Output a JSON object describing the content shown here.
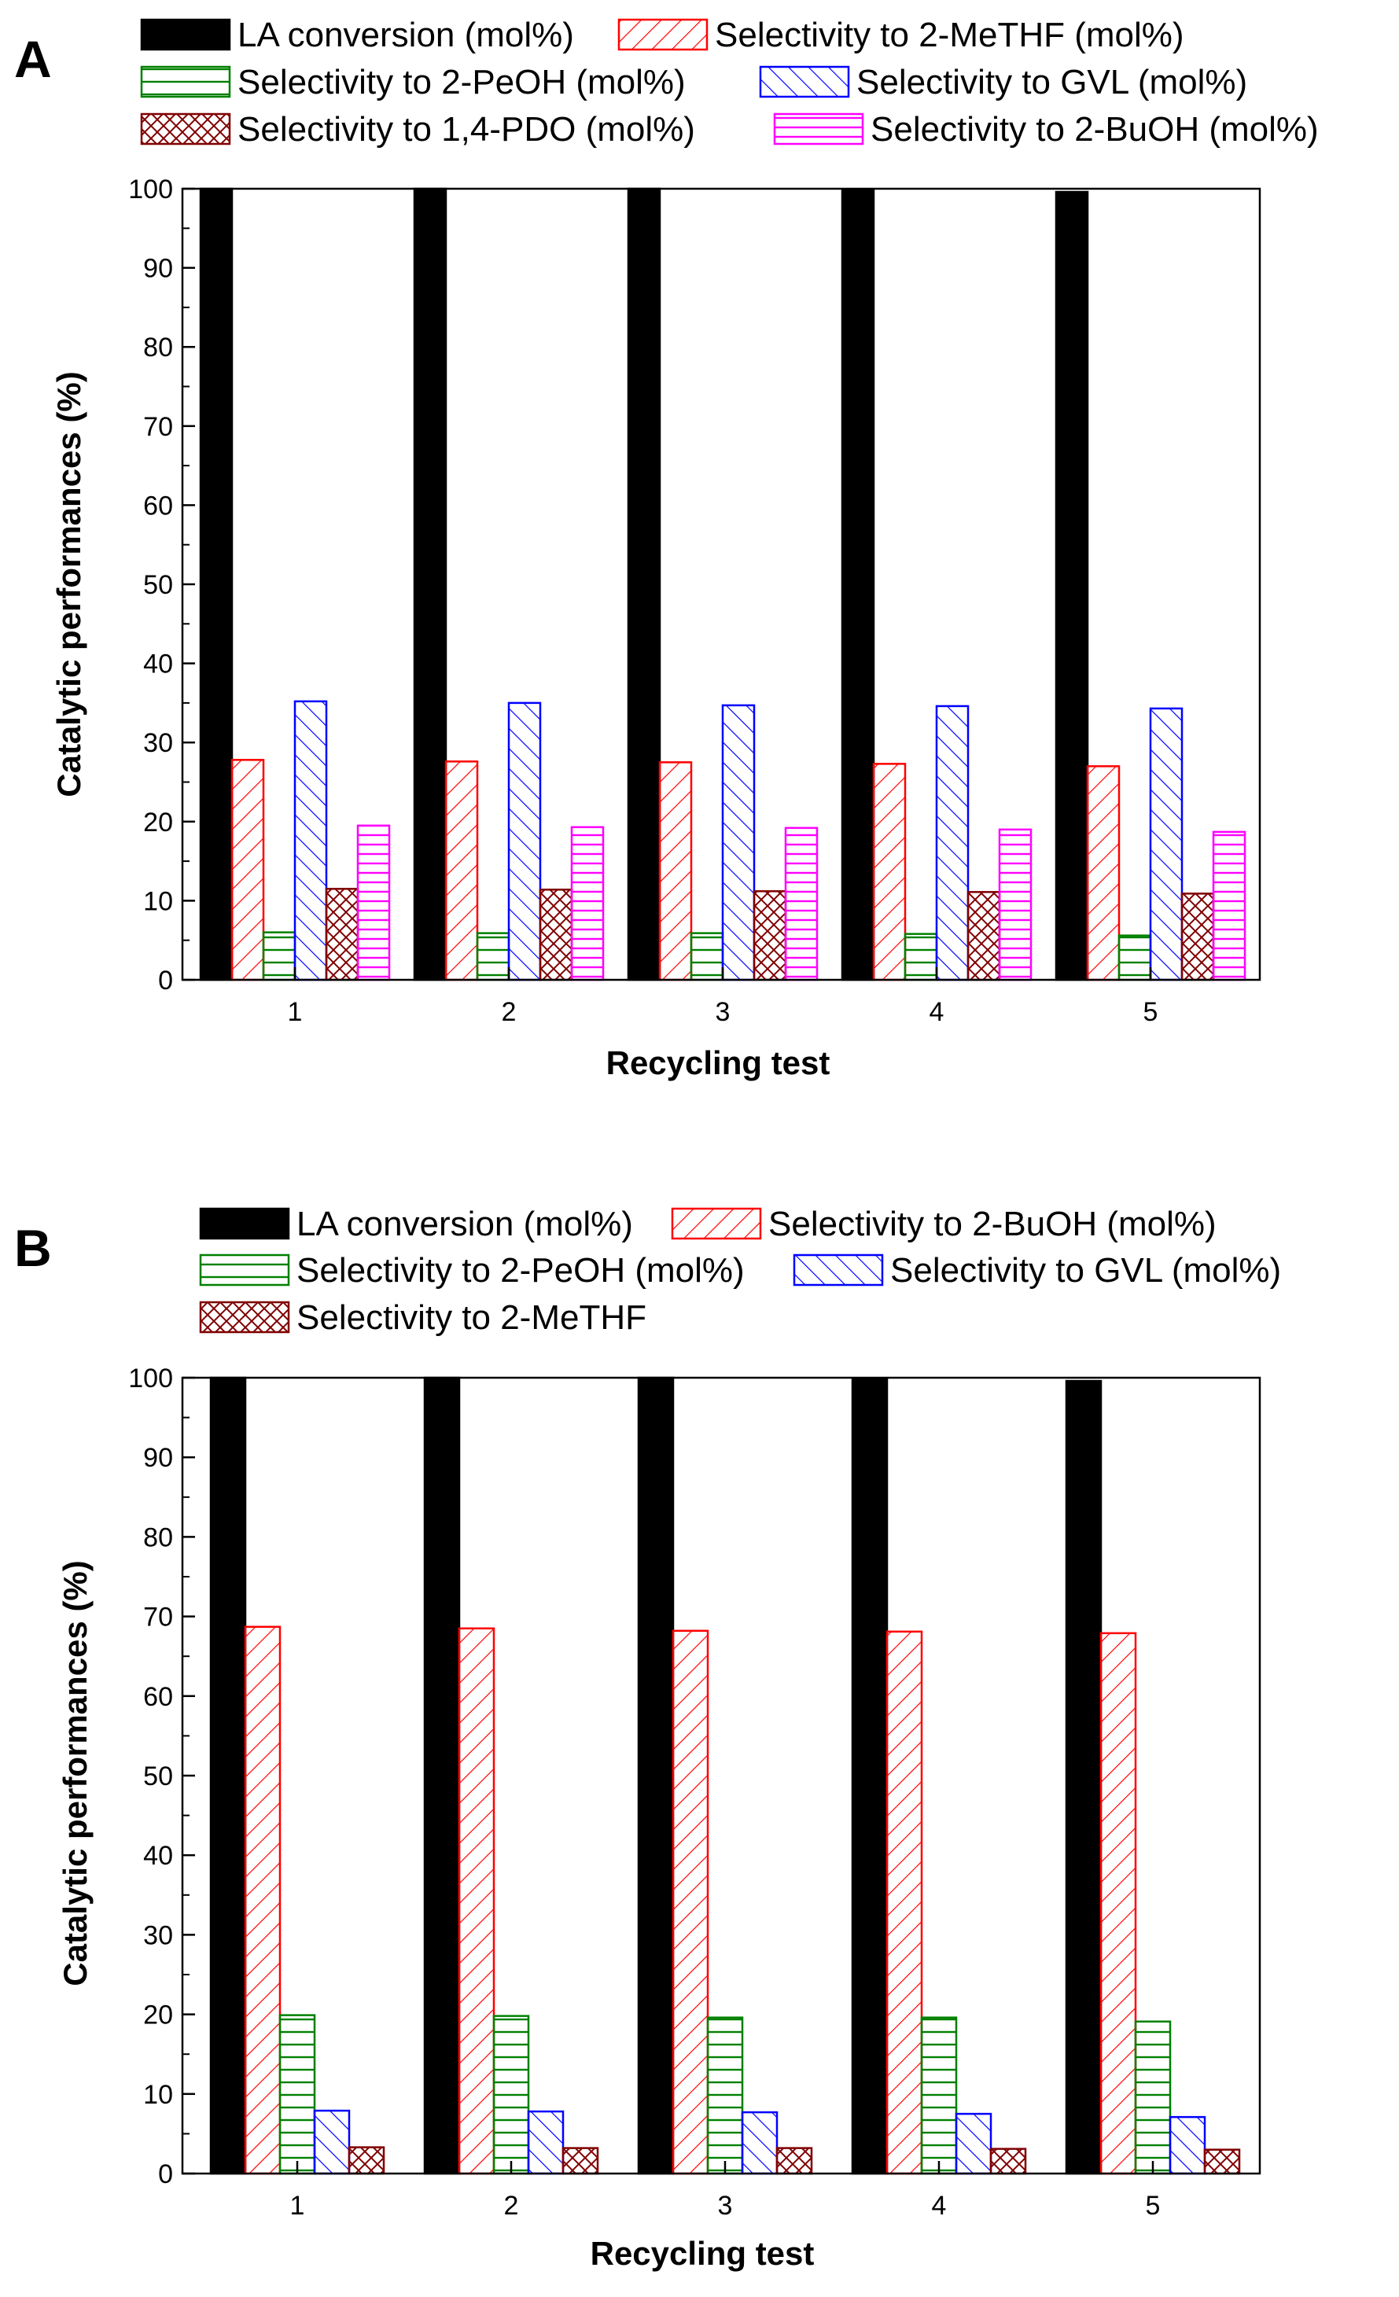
{
  "chart_data": [
    {
      "panel": "A",
      "type": "bar",
      "xlabel": "Recycling test",
      "ylabel": "Catalytic performances (%)",
      "ylim": [
        0,
        100
      ],
      "yticks": [
        0,
        10,
        20,
        30,
        40,
        50,
        60,
        70,
        80,
        90,
        100
      ],
      "categories": [
        "1",
        "2",
        "3",
        "4",
        "5"
      ],
      "legend_placement": "top",
      "series": [
        {
          "name": "LA conversion (mol%)",
          "pattern": "solid",
          "color": "#000000",
          "values": [
            100,
            100,
            100,
            99.8,
            99.6
          ]
        },
        {
          "name": "Selectivity to 2-MeTHF (mol%)",
          "pattern": "back-diagonal",
          "color": "#ff0000",
          "values": [
            27.8,
            27.6,
            27.5,
            27.3,
            27.0
          ]
        },
        {
          "name": "Selectivity to 2-PeOH (mol%)",
          "pattern": "horizontal",
          "color": "#008000",
          "values": [
            6.0,
            5.9,
            5.9,
            5.8,
            5.6
          ]
        },
        {
          "name": "Selectivity to GVL (mol%)",
          "pattern": "forward-diagonal",
          "color": "#0000ff",
          "values": [
            35.2,
            35.0,
            34.7,
            34.6,
            34.3
          ]
        },
        {
          "name": "Selectivity to 1,4-PDO (mol%)",
          "pattern": "crosshatch",
          "color": "#800000",
          "values": [
            11.5,
            11.4,
            11.2,
            11.1,
            10.9
          ]
        },
        {
          "name": "Selectivity to 2-BuOH (mol%)",
          "pattern": "horizontal",
          "color": "#ff00ff",
          "values": [
            19.5,
            19.3,
            19.2,
            19.0,
            18.7
          ]
        }
      ]
    },
    {
      "panel": "B",
      "type": "bar",
      "xlabel": "Recycling test",
      "ylabel": "Catalytic performances (%)",
      "ylim": [
        0,
        100
      ],
      "yticks": [
        0,
        10,
        20,
        30,
        40,
        50,
        60,
        70,
        80,
        90,
        100
      ],
      "categories": [
        "1",
        "2",
        "3",
        "4",
        "5"
      ],
      "legend_placement": "top",
      "series": [
        {
          "name": "LA conversion (mol%)",
          "pattern": "solid",
          "color": "#000000",
          "values": [
            100,
            100,
            100,
            99.8,
            99.6
          ]
        },
        {
          "name": "Selectivity to 2-BuOH (mol%)",
          "pattern": "back-diagonal",
          "color": "#ff0000",
          "values": [
            68.7,
            68.5,
            68.2,
            68.1,
            67.9
          ]
        },
        {
          "name": "Selectivity to 2-PeOH (mol%)",
          "pattern": "horizontal",
          "color": "#008000",
          "values": [
            19.9,
            19.8,
            19.6,
            19.6,
            19.1
          ]
        },
        {
          "name": "Selectivity to GVL (mol%)",
          "pattern": "forward-diagonal",
          "color": "#0000ff",
          "values": [
            7.9,
            7.8,
            7.7,
            7.5,
            7.1
          ]
        },
        {
          "name": "Selectivity to 2-MeTHF",
          "pattern": "crosshatch",
          "color": "#800000",
          "values": [
            3.3,
            3.2,
            3.2,
            3.1,
            3.0
          ]
        }
      ]
    }
  ]
}
